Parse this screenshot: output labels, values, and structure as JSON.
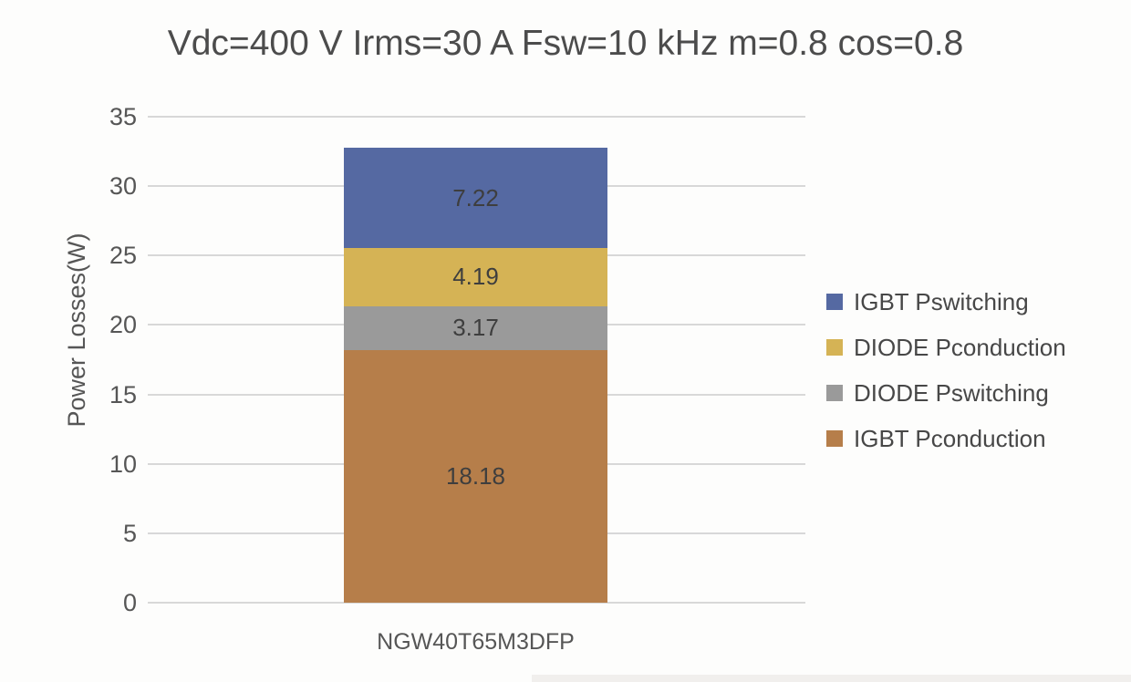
{
  "title": "Vdc=400 V Irms=30 A Fsw=10 kHz m=0.8 cos=0.8",
  "colors": {
    "bg": "#fdfdfc",
    "title_text": "#4c4c4c",
    "axis_text": "#565656",
    "value_text": "#3e3e3e",
    "legend_text": "#474747",
    "gridline": "#d8d8d8",
    "strip": "#f1efed"
  },
  "chart_data": {
    "type": "bar",
    "stacked": true,
    "title": "Vdc=400 V Irms=30 A Fsw=10 kHz m=0.8 cos=0.8",
    "xlabel": "",
    "ylabel": "Power Losses(W)",
    "categories": [
      "NGW40T65M3DFP"
    ],
    "series": [
      {
        "name": "IGBT Pconduction",
        "values": [
          18.18
        ],
        "label": "18.18",
        "color": "#b67e4a"
      },
      {
        "name": "DIODE Pswitching",
        "values": [
          3.17
        ],
        "label": "3.17",
        "color": "#9a9a9a"
      },
      {
        "name": "DIODE Pconduction",
        "values": [
          4.19
        ],
        "label": "4.19",
        "color": "#d5b355"
      },
      {
        "name": "IGBT Pswitching",
        "values": [
          7.22
        ],
        "label": "7.22",
        "color": "#5569a2"
      }
    ],
    "total": 32.76,
    "legend": [
      {
        "label": "IGBT Pswitching",
        "color": "#5569a2"
      },
      {
        "label": "DIODE Pconduction",
        "color": "#d5b355"
      },
      {
        "label": "DIODE Pswitching",
        "color": "#9a9a9a"
      },
      {
        "label": "IGBT Pconduction",
        "color": "#b67e4a"
      }
    ],
    "legend_position": "right",
    "ylim": [
      0,
      35
    ],
    "yticks": [
      0,
      5,
      10,
      15,
      20,
      25,
      30,
      35
    ],
    "grid": true
  }
}
